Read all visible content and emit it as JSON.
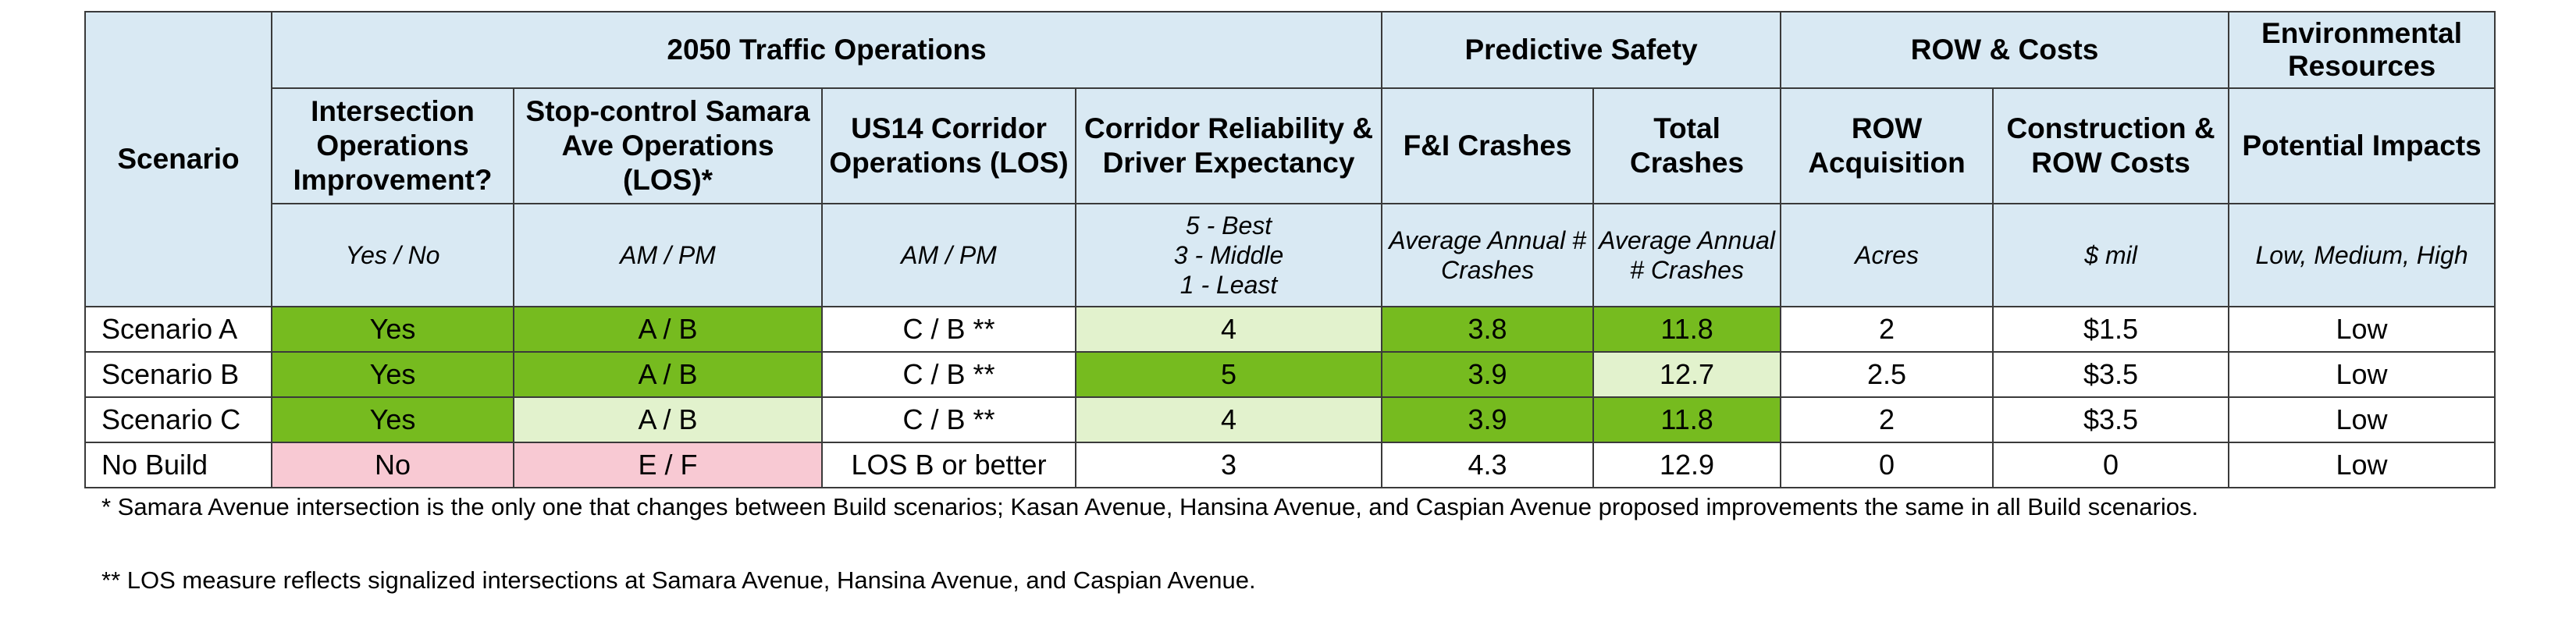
{
  "header": {
    "scenario": "Scenario",
    "groups": {
      "traffic": "2050 Traffic Operations",
      "safety": "Predictive Safety",
      "row_costs": "ROW & Costs",
      "environmental": "Environmental Resources"
    },
    "columns": [
      {
        "label": "Intersection Operations Improvement?",
        "unit": "Yes / No"
      },
      {
        "label": "Stop-control Samara Ave Operations (LOS)*",
        "unit": "AM / PM"
      },
      {
        "label": "US14 Corridor Operations (LOS)",
        "unit": "AM / PM"
      },
      {
        "label": "Corridor Reliability & Driver Expectancy",
        "unit": "5 - Best\n3 - Middle\n1 - Least"
      },
      {
        "label": "F&I Crashes",
        "unit": "Average Annual # Crashes"
      },
      {
        "label": "Total Crashes",
        "unit": "Average Annual # Crashes"
      },
      {
        "label": "ROW Acquisition",
        "unit": "Acres"
      },
      {
        "label": "Construction & ROW Costs",
        "unit": "$ mil"
      },
      {
        "label": "Potential Impacts",
        "unit": "Low, Medium, High"
      }
    ]
  },
  "rows": [
    {
      "scenario": "Scenario A",
      "values": [
        "Yes",
        "A / B",
        "C / B **",
        "4",
        "3.8",
        "11.8",
        "2",
        "$1.5",
        "Low"
      ]
    },
    {
      "scenario": "Scenario B",
      "values": [
        "Yes",
        "A / B",
        "C / B **",
        "5",
        "3.9",
        "12.7",
        "2.5",
        "$3.5",
        "Low"
      ]
    },
    {
      "scenario": "Scenario C",
      "values": [
        "Yes",
        "A / B",
        "C / B **",
        "4",
        "3.9",
        "11.8",
        "2",
        "$3.5",
        "Low"
      ]
    },
    {
      "scenario": "No Build",
      "values": [
        "No",
        "E / F",
        "LOS B or better",
        "3",
        "4.3",
        "12.9",
        "0",
        "0",
        "Low"
      ]
    }
  ],
  "notes": [
    "* Samara Avenue intersection is the only one that changes between Build scenarios; Kasan Avenue, Hansina Avenue, and Caspian Avenue proposed improvements the same in all Build scenarios.",
    "** LOS measure reflects signalized intersections at Samara Avenue, Hansina Avenue, and Caspian Avenue."
  ],
  "colors": {
    "header_bg": "#d9e9f3",
    "best_green": "#76bb1f",
    "light_green": "#e2f2cd",
    "worst_pink": "#f8c9d3"
  }
}
